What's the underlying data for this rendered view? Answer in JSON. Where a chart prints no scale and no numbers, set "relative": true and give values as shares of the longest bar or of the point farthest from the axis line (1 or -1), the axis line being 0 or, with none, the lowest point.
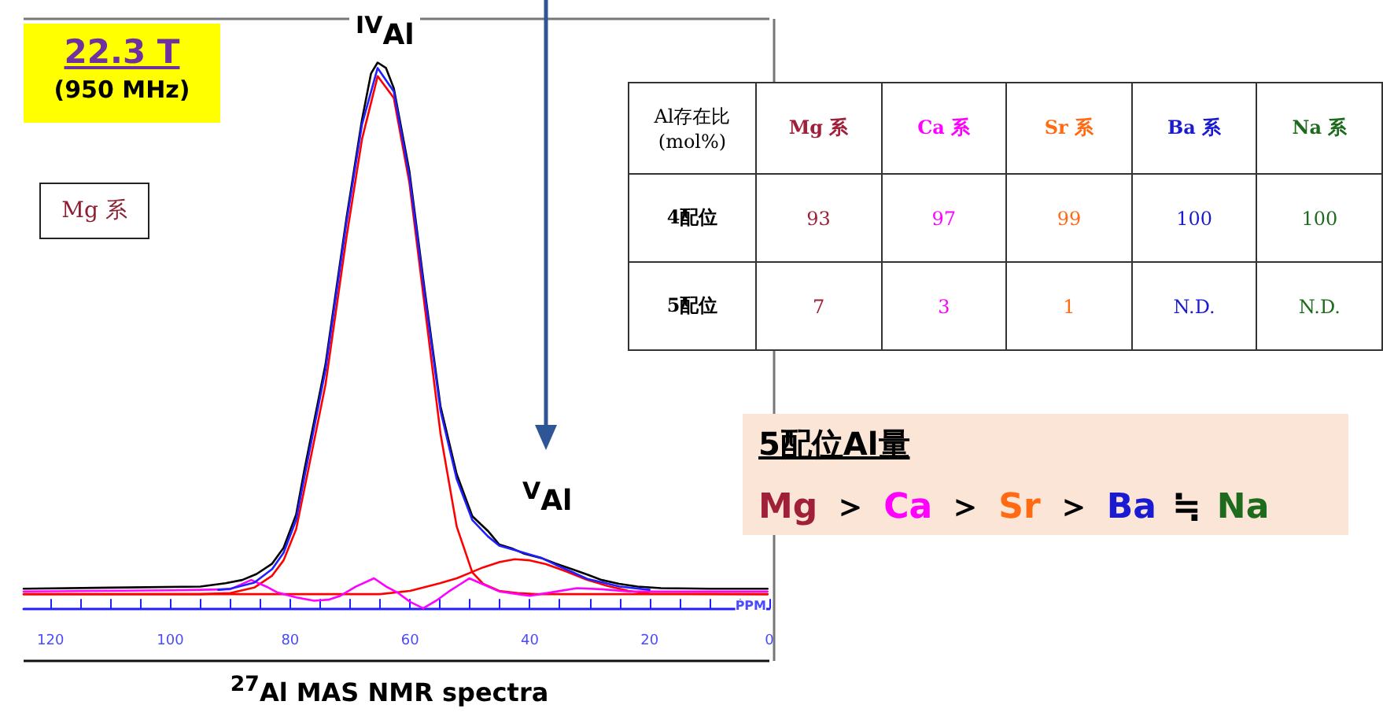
{
  "chart_data": [
    {
      "type": "line",
      "xlabel": "PPM",
      "relative": true,
      "grid": false,
      "marker": "none",
      "line_style": "solid",
      "xlim": [
        124.5,
        0
      ],
      "xticks": [
        120,
        {
          "value": 115,
          "label": null
        },
        {
          "value": 110,
          "label": null
        },
        {
          "value": 105,
          "label": null
        },
        100,
        {
          "value": 95,
          "label": null
        },
        {
          "value": 90,
          "label": null
        },
        {
          "value": 85,
          "label": null
        },
        80,
        {
          "value": 75,
          "label": null
        },
        {
          "value": 70,
          "label": null
        },
        {
          "value": 65,
          "label": null
        },
        60,
        {
          "value": 55,
          "label": null
        },
        {
          "value": 50,
          "label": null
        },
        {
          "value": 45,
          "label": null
        },
        40,
        {
          "value": 35,
          "label": null
        },
        {
          "value": 30,
          "label": null
        },
        {
          "value": 25,
          "label": null
        },
        20,
        {
          "value": 15,
          "label": null
        },
        {
          "value": 10,
          "label": null
        },
        {
          "value": 5,
          "label": null
        },
        0
      ],
      "series": [
        {
          "color": "#000000",
          "x": [
            124.5,
            110,
            95,
            90.8,
            88,
            85.6,
            83,
            81.1,
            79,
            77.6,
            74.1,
            70.6,
            68,
            66.5,
            65.4,
            64,
            62.7,
            60.1,
            57.5,
            54.9,
            52.2,
            49.6,
            47,
            45.1,
            43,
            40.9,
            38,
            35.7,
            33,
            30.4,
            28,
            25.1,
            22,
            18.1,
            10,
            0.3
          ],
          "values": [
            0.036,
            0.038,
            0.04,
            0.046,
            0.052,
            0.063,
            0.082,
            0.111,
            0.172,
            0.255,
            0.447,
            0.715,
            0.896,
            0.98,
            1.0,
            0.99,
            0.953,
            0.801,
            0.58,
            0.37,
            0.246,
            0.169,
            0.142,
            0.117,
            0.11,
            0.1,
            0.092,
            0.082,
            0.072,
            0.062,
            0.052,
            0.045,
            0.04,
            0.037,
            0.036,
            0.036
          ]
        },
        {
          "color": "#ff0000",
          "x": [
            124.5,
            95,
            90,
            86,
            83,
            81.1,
            79,
            77.6,
            74.1,
            70.6,
            68,
            65.4,
            62.7,
            60.1,
            57.5,
            54.9,
            52.2,
            49.6,
            47.8,
            45.1,
            42,
            39,
            0.3
          ],
          "values": [
            0.026,
            0.026,
            0.028,
            0.038,
            0.06,
            0.088,
            0.145,
            0.22,
            0.41,
            0.68,
            0.86,
            0.975,
            0.935,
            0.78,
            0.55,
            0.32,
            0.15,
            0.066,
            0.045,
            0.032,
            0.028,
            0.026,
            0.026
          ]
        },
        {
          "color": "#ff0000",
          "x": [
            124.5,
            65,
            60,
            57.8,
            55,
            52.2,
            50,
            47.8,
            45,
            42.5,
            40,
            37.3,
            34,
            30.4,
            27,
            23.5,
            20,
            0.3
          ],
          "values": [
            0.026,
            0.026,
            0.032,
            0.038,
            0.046,
            0.055,
            0.065,
            0.075,
            0.085,
            0.09,
            0.088,
            0.081,
            0.068,
            0.052,
            0.041,
            0.032,
            0.027,
            0.026
          ]
        },
        {
          "color": "#ff00ff",
          "x": [
            124.5,
            100,
            90,
            86.5,
            84,
            82.1,
            79,
            76,
            73.5,
            71.6,
            69,
            66,
            64,
            62.1,
            60,
            57.8,
            55.5,
            53.5,
            51.5,
            50.1,
            48,
            45.1,
            42,
            40,
            36,
            32.1,
            28,
            23.5,
            15,
            0.3
          ],
          "values": [
            0.031,
            0.033,
            0.035,
            0.052,
            0.04,
            0.029,
            0.02,
            0.014,
            0.016,
            0.023,
            0.04,
            0.055,
            0.04,
            0.029,
            0.012,
            0.0,
            0.015,
            0.031,
            0.045,
            0.055,
            0.045,
            0.031,
            0.026,
            0.023,
            0.03,
            0.037,
            0.035,
            0.031,
            0.031,
            0.031
          ]
        },
        {
          "color": "#1f1fff",
          "x": [
            92,
            90,
            86,
            83,
            81.1,
            79,
            77.6,
            74.1,
            70.6,
            68,
            65.4,
            62.7,
            60.1,
            57.5,
            54.9,
            52.2,
            49.6,
            47,
            45.1,
            42,
            38,
            35.7,
            33,
            30.4,
            25,
            20
          ],
          "values": [
            0.034,
            0.036,
            0.047,
            0.072,
            0.102,
            0.162,
            0.242,
            0.437,
            0.707,
            0.887,
            0.99,
            0.947,
            0.792,
            0.572,
            0.362,
            0.237,
            0.162,
            0.132,
            0.115,
            0.105,
            0.092,
            0.08,
            0.067,
            0.054,
            0.04,
            0.034
          ]
        }
      ],
      "annotations": [
        "$^{IV}$Al",
        "$^{V}$Al",
        "$^{27}$Al MAS NMR spectra",
        "22.3 T",
        "(950 MHz)",
        "Mg 系"
      ]
    },
    {
      "type": "other",
      "title": "Al存在比 (mol%)",
      "data_labels": true,
      "categories": [
        "Mg 系",
        "Ca 系",
        "Sr 系",
        "Ba 系",
        "Na 系"
      ],
      "colors": [
        "#a0203a",
        "#ff00ff",
        "#ff6a13",
        "#1a1ad0",
        "#1e6b1e"
      ],
      "series": [
        {
          "name": "4配位",
          "values": [
            93,
            97,
            99,
            100,
            100
          ]
        },
        {
          "name": "5配位",
          "values": [
            7,
            3,
            1,
            null,
            null
          ],
          "value_labels": [
            "7",
            "3",
            "1",
            "N.D.",
            "N.D."
          ]
        }
      ]
    },
    {
      "type": "other",
      "title": "5配位Al量",
      "colors": [
        "#a0203a",
        "#ff00ff",
        "#ff6a13",
        "#1a1ad0",
        "#1e6b1e"
      ],
      "annotations": [
        "Mg",
        "＞",
        "Ca",
        "＞",
        "Sr",
        "＞",
        "Ba",
        "≒",
        "Na"
      ]
    }
  ]
}
